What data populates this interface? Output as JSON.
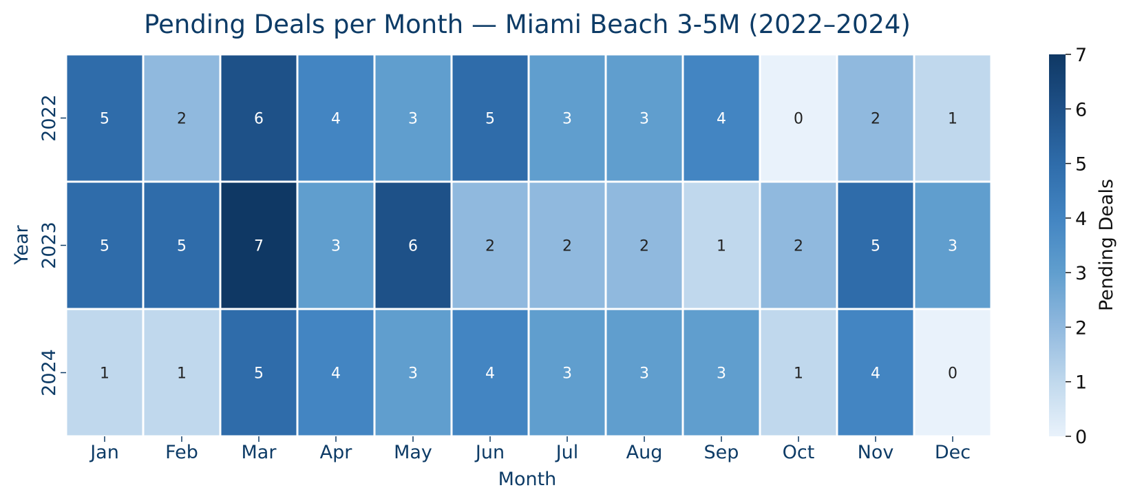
{
  "chart_data": {
    "type": "heatmap",
    "title": "Pending Deals per Month — Miami Beach 3-5M (2022–2024)",
    "xlabel": "Month",
    "ylabel": "Year",
    "x_categories": [
      "Jan",
      "Feb",
      "Mar",
      "Apr",
      "May",
      "Jun",
      "Jul",
      "Aug",
      "Sep",
      "Oct",
      "Nov",
      "Dec"
    ],
    "y_categories": [
      "2022",
      "2023",
      "2024"
    ],
    "values": [
      [
        5,
        2,
        6,
        4,
        3,
        5,
        3,
        3,
        4,
        0,
        2,
        1
      ],
      [
        5,
        5,
        7,
        3,
        6,
        2,
        2,
        2,
        1,
        2,
        5,
        3
      ],
      [
        1,
        1,
        5,
        4,
        3,
        4,
        3,
        3,
        3,
        1,
        4,
        0
      ]
    ],
    "colorbar": {
      "label": "Pending Deals",
      "range": [
        0,
        7
      ],
      "ticks": [
        "0",
        "1",
        "2",
        "3",
        "4",
        "5",
        "6",
        "7"
      ],
      "colormap": "Blues",
      "low_color": "#e9f2fb",
      "high_color": "#0f3864"
    },
    "annotations": true
  }
}
